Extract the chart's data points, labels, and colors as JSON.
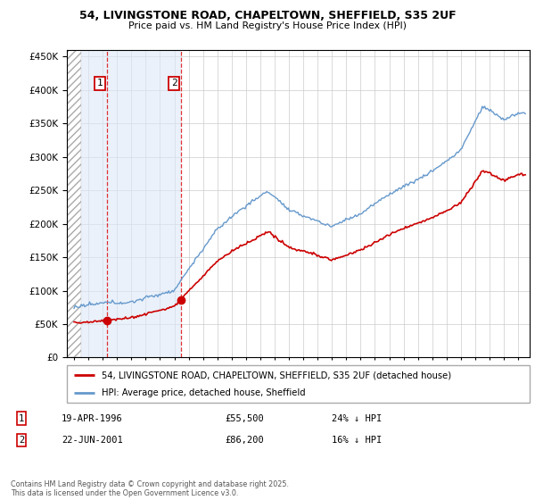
{
  "title_line1": "54, LIVINGSTONE ROAD, CHAPELTOWN, SHEFFIELD, S35 2UF",
  "title_line2": "Price paid vs. HM Land Registry's House Price Index (HPI)",
  "hpi_color": "#6699CC",
  "price_color": "#CC0000",
  "marker_color": "#CC0000",
  "purchase1_year": 1996.29,
  "purchase1_price": 55500,
  "purchase2_year": 2001.47,
  "purchase2_price": 86200,
  "ylim_min": 0,
  "ylim_max": 460000,
  "xlim_min": 1993.5,
  "xlim_max": 2025.8,
  "hatch_end_year": 1994.5,
  "shade_color": "#DCE8F8",
  "legend_line1": "54, LIVINGSTONE ROAD, CHAPELTOWN, SHEFFIELD, S35 2UF (detached house)",
  "legend_line2": "HPI: Average price, detached house, Sheffield",
  "footnote": "Contains HM Land Registry data © Crown copyright and database right 2025.\nThis data is licensed under the Open Government Licence v3.0."
}
